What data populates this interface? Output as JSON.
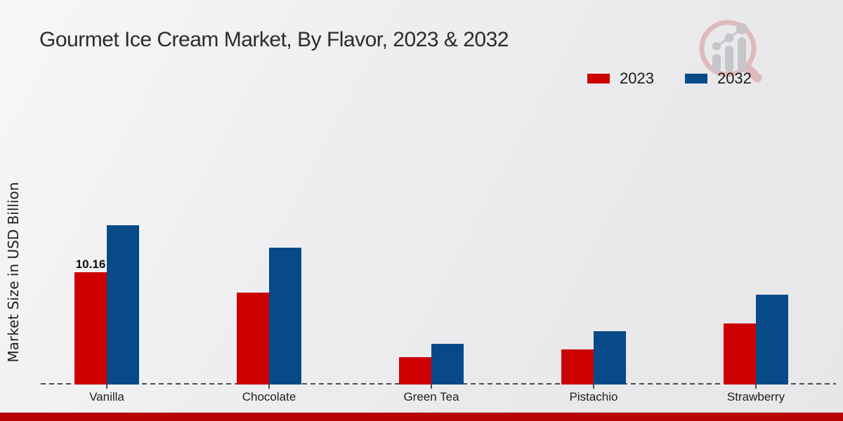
{
  "page": {
    "background_color": "#ebebed",
    "footer_bar_color": "#b90404"
  },
  "header": {
    "title": "Gourmet Ice Cream Market, By Flavor, 2023 & 2032",
    "title_color": "#2b2b2b"
  },
  "icons": {
    "logo": "magnifier-growth-bars-logo",
    "logo_ring_color": "#debabe",
    "logo_bars_color": "#c6c6ca"
  },
  "chart_data": {
    "type": "bar",
    "title": "Gourmet Ice Cream Market, By Flavor, 2023 & 2032",
    "xlabel": "",
    "ylabel": "Market Size in USD Billion",
    "categories": [
      "Vanilla",
      "Chocolate",
      "Green Tea",
      "Pistachio",
      "Strawberry"
    ],
    "series": [
      {
        "name": "2023",
        "color": "#cc0000",
        "values": [
          10.16,
          8.3,
          2.5,
          3.2,
          5.5
        ]
      },
      {
        "name": "2032",
        "color": "#084a87",
        "values": [
          14.4,
          12.4,
          3.7,
          4.8,
          8.1
        ]
      }
    ],
    "point_labels": [
      {
        "series_index": 0,
        "category_index": 0,
        "text": "10.16"
      }
    ],
    "legend_position": "top-right",
    "grid": false,
    "baseline_style": "dashed",
    "ylim": [
      0,
      16
    ]
  }
}
